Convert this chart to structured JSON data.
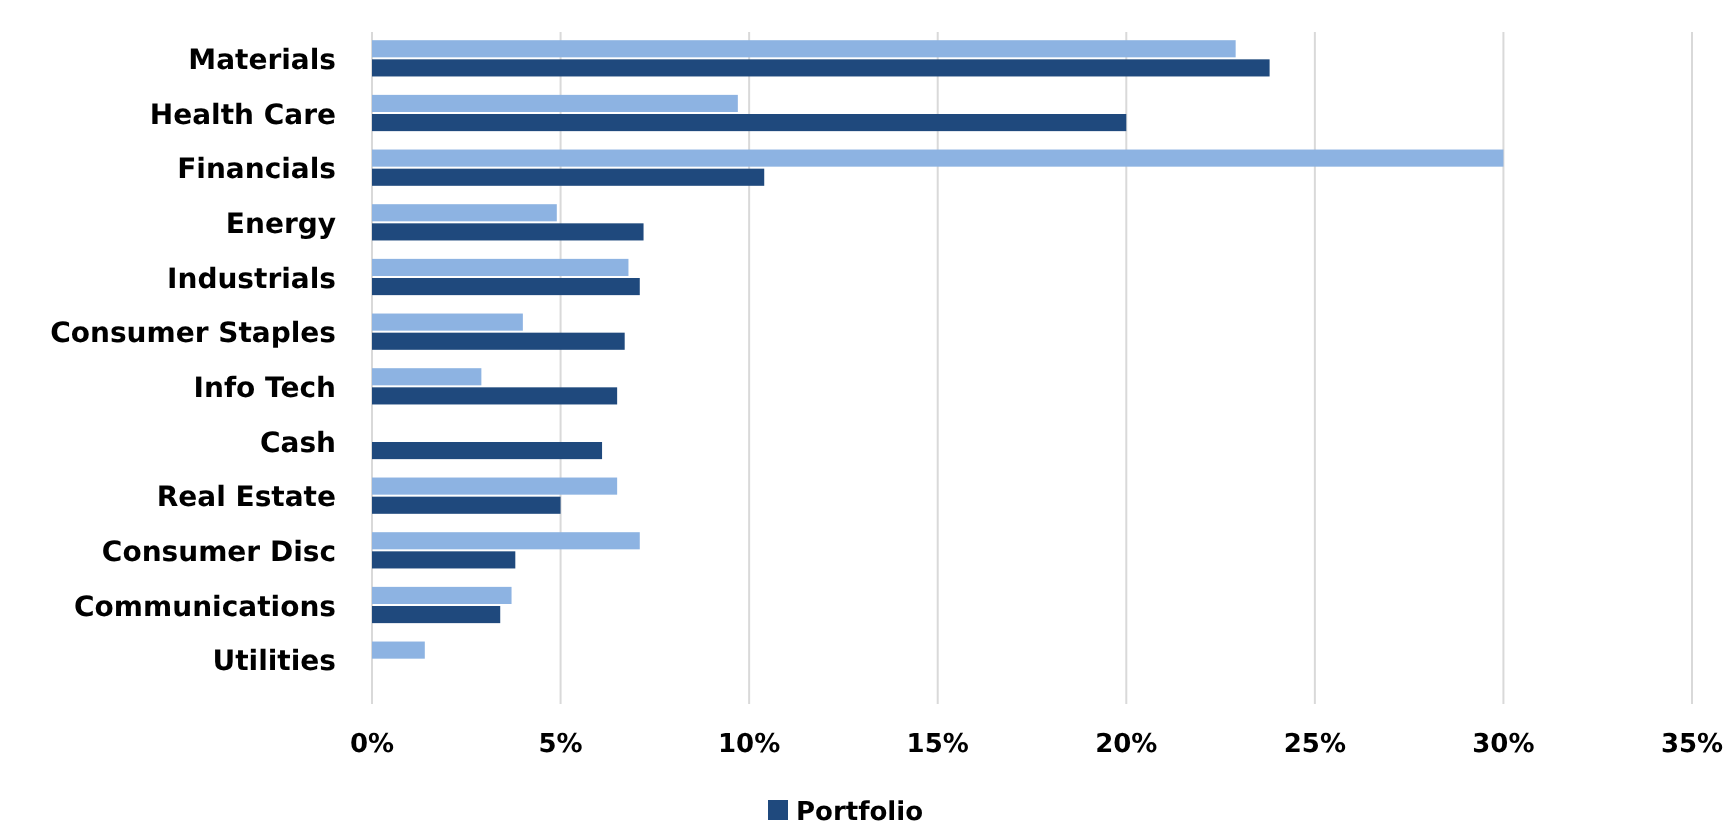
{
  "chart_data": {
    "type": "bar",
    "orientation": "horizontal",
    "categories": [
      "Materials",
      "Health Care",
      "Financials",
      "Energy",
      "Industrials",
      "Consumer Staples",
      "Info Tech",
      "Cash",
      "Real Estate",
      "Consumer Disc",
      "Communications",
      "Utilities"
    ],
    "series": [
      {
        "color": "#8db3e2",
        "values": [
          22.9,
          9.7,
          30.0,
          4.9,
          6.8,
          4.0,
          2.9,
          null,
          6.5,
          7.1,
          3.7,
          1.4
        ]
      },
      {
        "name": "Portfolio",
        "color": "#1f497d",
        "values": [
          23.8,
          20.0,
          10.4,
          7.2,
          7.1,
          6.7,
          6.5,
          6.1,
          5.0,
          3.8,
          3.4,
          null
        ]
      }
    ],
    "xlim": [
      0,
      35
    ],
    "xticks": [
      {
        "value": 0,
        "label": "0%"
      },
      {
        "value": 5,
        "label": "5%"
      },
      {
        "value": 10,
        "label": "10%"
      },
      {
        "value": 15,
        "label": "15%"
      },
      {
        "value": 20,
        "label": "20%"
      },
      {
        "value": 25,
        "label": "25%"
      },
      {
        "value": 30,
        "label": "30%"
      },
      {
        "value": 35,
        "label": "35%"
      }
    ],
    "grid": "x",
    "legend": "bottom"
  }
}
